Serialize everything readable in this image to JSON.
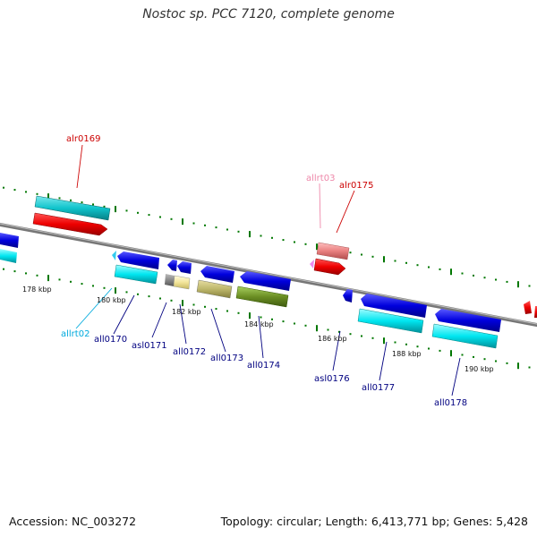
{
  "title": "Nostoc sp. PCC 7120, complete genome",
  "footer": {
    "accession": "Accession: NC_003272",
    "summary": "Topology: circular; Length: 6,413,771 bp; Genes: 5,428"
  },
  "colors": {
    "red_gene": "#ee0000",
    "cyan_gene": "#00e6f0",
    "blue_gene": "#0000dd",
    "pink_gene": "#e98080",
    "tick_green": "#007700",
    "label_blue": "#000080",
    "label_red": "#cc0000",
    "label_cyan": "#00aadd",
    "label_pink": "#ee88aa"
  },
  "kbp_labels": [
    "178 kbp",
    "180 kbp",
    "182 kbp",
    "184 kbp",
    "186 kbp",
    "188 kbp",
    "190 kbp"
  ],
  "gene_labels": [
    {
      "text": "alr0169",
      "color": "#cc0000"
    },
    {
      "text": "allrt03",
      "color": "#ee88aa"
    },
    {
      "text": "alr0175",
      "color": "#cc0000"
    },
    {
      "text": "allrt02",
      "color": "#00aadd"
    },
    {
      "text": "all0170",
      "color": "#000080"
    },
    {
      "text": "asl0171",
      "color": "#000080"
    },
    {
      "text": "all0172",
      "color": "#000080"
    },
    {
      "text": "all0173",
      "color": "#000080"
    },
    {
      "text": "all0174",
      "color": "#000080"
    },
    {
      "text": "asl0176",
      "color": "#000080"
    },
    {
      "text": "all0177",
      "color": "#000080"
    },
    {
      "text": "all0178",
      "color": "#000080"
    }
  ]
}
